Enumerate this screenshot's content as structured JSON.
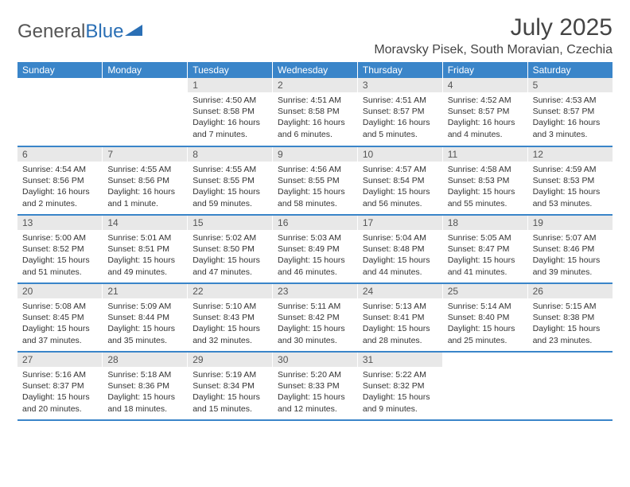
{
  "logo": {
    "text1": "General",
    "text2": "Blue"
  },
  "title": "July 2025",
  "location": "Moravsky Pisek, South Moravian, Czechia",
  "headers": [
    "Sunday",
    "Monday",
    "Tuesday",
    "Wednesday",
    "Thursday",
    "Friday",
    "Saturday"
  ],
  "header_bg": "#3a85c9",
  "daynum_bg": "#e8e8e8",
  "border_color": "#3a85c9",
  "weeks": [
    [
      null,
      null,
      {
        "n": "1",
        "sr": "4:50 AM",
        "ss": "8:58 PM",
        "dl": "16 hours and 7 minutes."
      },
      {
        "n": "2",
        "sr": "4:51 AM",
        "ss": "8:58 PM",
        "dl": "16 hours and 6 minutes."
      },
      {
        "n": "3",
        "sr": "4:51 AM",
        "ss": "8:57 PM",
        "dl": "16 hours and 5 minutes."
      },
      {
        "n": "4",
        "sr": "4:52 AM",
        "ss": "8:57 PM",
        "dl": "16 hours and 4 minutes."
      },
      {
        "n": "5",
        "sr": "4:53 AM",
        "ss": "8:57 PM",
        "dl": "16 hours and 3 minutes."
      }
    ],
    [
      {
        "n": "6",
        "sr": "4:54 AM",
        "ss": "8:56 PM",
        "dl": "16 hours and 2 minutes."
      },
      {
        "n": "7",
        "sr": "4:55 AM",
        "ss": "8:56 PM",
        "dl": "16 hours and 1 minute."
      },
      {
        "n": "8",
        "sr": "4:55 AM",
        "ss": "8:55 PM",
        "dl": "15 hours and 59 minutes."
      },
      {
        "n": "9",
        "sr": "4:56 AM",
        "ss": "8:55 PM",
        "dl": "15 hours and 58 minutes."
      },
      {
        "n": "10",
        "sr": "4:57 AM",
        "ss": "8:54 PM",
        "dl": "15 hours and 56 minutes."
      },
      {
        "n": "11",
        "sr": "4:58 AM",
        "ss": "8:53 PM",
        "dl": "15 hours and 55 minutes."
      },
      {
        "n": "12",
        "sr": "4:59 AM",
        "ss": "8:53 PM",
        "dl": "15 hours and 53 minutes."
      }
    ],
    [
      {
        "n": "13",
        "sr": "5:00 AM",
        "ss": "8:52 PM",
        "dl": "15 hours and 51 minutes."
      },
      {
        "n": "14",
        "sr": "5:01 AM",
        "ss": "8:51 PM",
        "dl": "15 hours and 49 minutes."
      },
      {
        "n": "15",
        "sr": "5:02 AM",
        "ss": "8:50 PM",
        "dl": "15 hours and 47 minutes."
      },
      {
        "n": "16",
        "sr": "5:03 AM",
        "ss": "8:49 PM",
        "dl": "15 hours and 46 minutes."
      },
      {
        "n": "17",
        "sr": "5:04 AM",
        "ss": "8:48 PM",
        "dl": "15 hours and 44 minutes."
      },
      {
        "n": "18",
        "sr": "5:05 AM",
        "ss": "8:47 PM",
        "dl": "15 hours and 41 minutes."
      },
      {
        "n": "19",
        "sr": "5:07 AM",
        "ss": "8:46 PM",
        "dl": "15 hours and 39 minutes."
      }
    ],
    [
      {
        "n": "20",
        "sr": "5:08 AM",
        "ss": "8:45 PM",
        "dl": "15 hours and 37 minutes."
      },
      {
        "n": "21",
        "sr": "5:09 AM",
        "ss": "8:44 PM",
        "dl": "15 hours and 35 minutes."
      },
      {
        "n": "22",
        "sr": "5:10 AM",
        "ss": "8:43 PM",
        "dl": "15 hours and 32 minutes."
      },
      {
        "n": "23",
        "sr": "5:11 AM",
        "ss": "8:42 PM",
        "dl": "15 hours and 30 minutes."
      },
      {
        "n": "24",
        "sr": "5:13 AM",
        "ss": "8:41 PM",
        "dl": "15 hours and 28 minutes."
      },
      {
        "n": "25",
        "sr": "5:14 AM",
        "ss": "8:40 PM",
        "dl": "15 hours and 25 minutes."
      },
      {
        "n": "26",
        "sr": "5:15 AM",
        "ss": "8:38 PM",
        "dl": "15 hours and 23 minutes."
      }
    ],
    [
      {
        "n": "27",
        "sr": "5:16 AM",
        "ss": "8:37 PM",
        "dl": "15 hours and 20 minutes."
      },
      {
        "n": "28",
        "sr": "5:18 AM",
        "ss": "8:36 PM",
        "dl": "15 hours and 18 minutes."
      },
      {
        "n": "29",
        "sr": "5:19 AM",
        "ss": "8:34 PM",
        "dl": "15 hours and 15 minutes."
      },
      {
        "n": "30",
        "sr": "5:20 AM",
        "ss": "8:33 PM",
        "dl": "15 hours and 12 minutes."
      },
      {
        "n": "31",
        "sr": "5:22 AM",
        "ss": "8:32 PM",
        "dl": "15 hours and 9 minutes."
      },
      null,
      null
    ]
  ]
}
